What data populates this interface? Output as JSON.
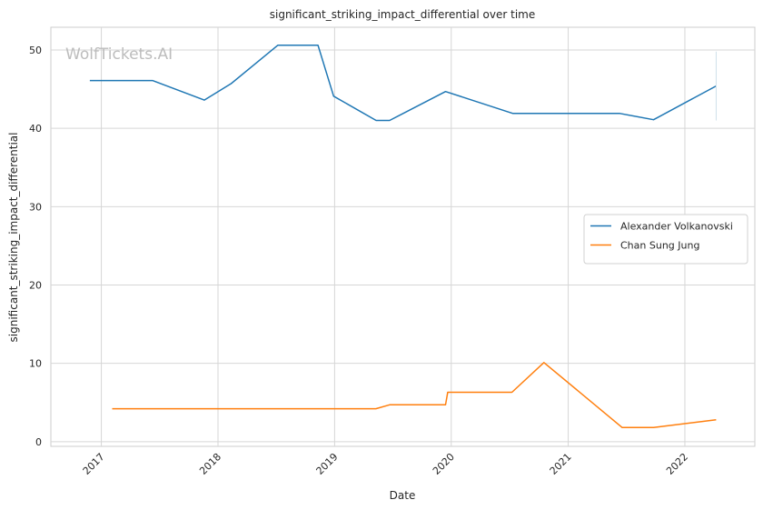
{
  "chart_data": {
    "type": "line",
    "title": "significant_striking_impact_differential over time",
    "xlabel": "Date",
    "ylabel": "significant_striking_impact_differential",
    "x_ticks": [
      "2017",
      "2018",
      "2019",
      "2020",
      "2021",
      "2022"
    ],
    "y_ticks": [
      0,
      10,
      20,
      30,
      40,
      50
    ],
    "xlim": [
      "2016-07-27",
      "2022-08-08"
    ],
    "ylim": [
      -0.6,
      52.9
    ],
    "grid": true,
    "legend_position": "center-right",
    "watermark": "WolfTickets.AI",
    "series": [
      {
        "name": "Alexander Volkanovski",
        "color": "#1f77b4",
        "points": [
          [
            "2016-11-26",
            46.1
          ],
          [
            "2017-06-10",
            46.1
          ],
          [
            "2017-11-19",
            43.6
          ],
          [
            "2018-02-11",
            45.7
          ],
          [
            "2018-07-07",
            50.6
          ],
          [
            "2018-11-10",
            50.6
          ],
          [
            "2018-12-29",
            44.1
          ],
          [
            "2019-05-11",
            41.0
          ],
          [
            "2019-06-22",
            41.0
          ],
          [
            "2019-12-14",
            44.7
          ],
          [
            "2020-07-12",
            41.9
          ],
          [
            "2021-06-12",
            41.9
          ],
          [
            "2021-09-25",
            41.1
          ],
          [
            "2022-04-09",
            45.4
          ]
        ]
      },
      {
        "name": "Chan Sung Jung",
        "color": "#ff7f0e",
        "points": [
          [
            "2017-02-04",
            4.2
          ],
          [
            "2019-05-10",
            4.2
          ],
          [
            "2019-06-22",
            4.7
          ],
          [
            "2019-12-14",
            4.7
          ],
          [
            "2019-12-21",
            6.3
          ],
          [
            "2020-07-09",
            6.3
          ],
          [
            "2020-10-17",
            10.1
          ],
          [
            "2021-06-19",
            1.8
          ],
          [
            "2021-09-25",
            1.8
          ],
          [
            "2022-04-09",
            2.8
          ]
        ]
      }
    ]
  }
}
